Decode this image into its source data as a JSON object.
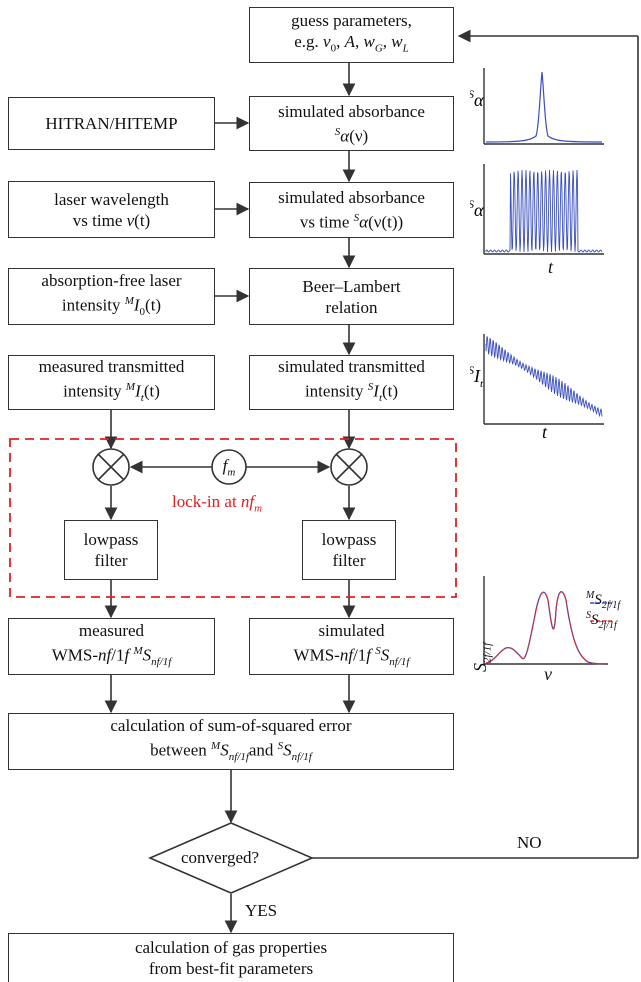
{
  "boxes": {
    "guess": {
      "line1": "guess parameters,",
      "line2_prefix": "e.g. ",
      "line2_params": [
        "v",
        "0",
        ", ",
        "A",
        ", ",
        "w",
        "G",
        ", ",
        "w",
        "L"
      ]
    },
    "hitran": {
      "text": "HITRAN/HITEMP"
    },
    "sim_abs": {
      "line1": "simulated absorbance",
      "sym_sup": "S",
      "sym": "α",
      "arg": "(ν)"
    },
    "laser_wl": {
      "line1": "laser wavelength",
      "line2": "vs time ",
      "sym": "ν",
      "arg": "(t)"
    },
    "sim_abs_time": {
      "line1": "simulated absorbance",
      "line2": "vs time ",
      "sym_sup": "S",
      "sym": "α",
      "arg": "(ν(t))"
    },
    "abs_free": {
      "line1": "absorption-free laser",
      "line2": "intensity ",
      "sym_sup": "M",
      "sym": "I",
      "sym_sub": "0",
      "arg": "(t)"
    },
    "beer": {
      "line1": "Beer–Lambert",
      "line2": "relation"
    },
    "meas_trans": {
      "line1": "measured transmitted",
      "line2": "intensity ",
      "sym_sup": "M",
      "sym": "I",
      "sym_sub": "t",
      "arg": "(t)"
    },
    "sim_trans": {
      "line1": "simulated transmitted",
      "line2": "intensity ",
      "sym_sup": "S",
      "sym": "I",
      "sym_sub": "t",
      "arg": "(t)"
    },
    "lowpass_left": {
      "line1": "lowpass",
      "line2": "filter"
    },
    "lowpass_right": {
      "line1": "lowpass",
      "line2": "filter"
    },
    "meas_wms": {
      "line1": "measured",
      "line2_a": "WMS-",
      "line2_b": "nf",
      "line2_c": "/1",
      "line2_d": "f",
      "sym_sup": "M",
      "sym": "S",
      "sym_sub": "nf/1f"
    },
    "sim_wms": {
      "line1": "simulated",
      "line2_a": "WMS-",
      "line2_b": "nf",
      "line2_c": "/1",
      "line2_d": "f",
      "sym_sup": "S",
      "sym": "S",
      "sym_sub": "nf/1f"
    },
    "sse": {
      "line1": "calculation of sum-of-squared error",
      "line2_a": "between ",
      "sup_m": "M",
      "sym": "S",
      "sub": "nf/1f",
      "and": "and ",
      "sup_s": "S"
    },
    "converged": {
      "text": "converged?"
    },
    "gas": {
      "line1": "calculation of gas properties",
      "line2": "from best-fit parameters"
    }
  },
  "lockin": {
    "label_prefix": "lock-in at ",
    "label_n": "n",
    "label_f": "f",
    "label_sub": "m",
    "fm_f": "f",
    "fm_sub": "m"
  },
  "flow": {
    "no_label": "NO",
    "yes_label": "YES"
  },
  "colors": {
    "box_border": "#333333",
    "lockin": "#e02020",
    "trace_blue": "#3b4fc0",
    "trace_red": "#e03030"
  },
  "plots": [
    {
      "id": "absorbance-vs-nu",
      "ylabel_sup": "S",
      "ylabel": "α",
      "xlabel": "ν"
    },
    {
      "id": "absorbance-vs-t",
      "ylabel_sup": "S",
      "ylabel": "α",
      "xlabel": "t"
    },
    {
      "id": "intensity-vs-t",
      "ylabel_sup": "S",
      "ylabel": "I",
      "ylabel_sub": "t",
      "xlabel": "t"
    },
    {
      "id": "wms-vs-nu",
      "ylabel": "S",
      "ylabel_sub": "2f/1f",
      "xlabel": "ν",
      "legend": [
        {
          "sup": "M",
          "sym": "S",
          "sub": "2f/1f",
          "color": "#3b4fc0"
        },
        {
          "sup": "S",
          "sym": "S",
          "sub": "2f/1f",
          "color": "#e03030"
        }
      ]
    }
  ]
}
